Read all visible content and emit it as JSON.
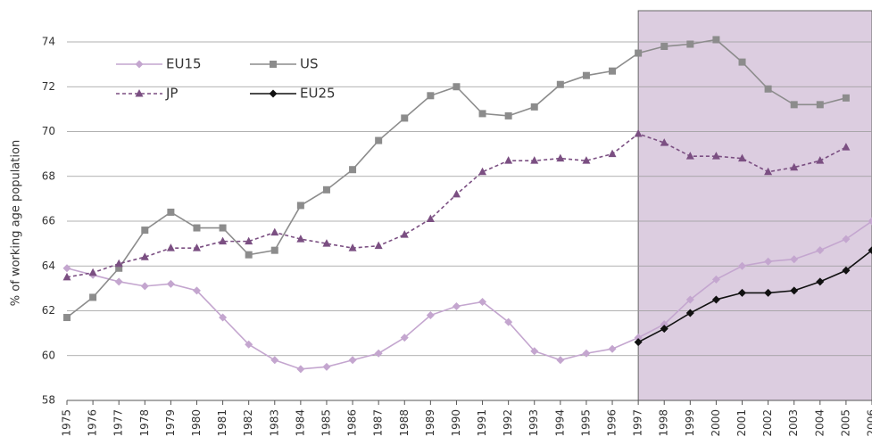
{
  "chart_data": {
    "type": "line",
    "y_label": "% of working age population",
    "x": [
      1975,
      1976,
      1977,
      1978,
      1979,
      1980,
      1981,
      1982,
      1983,
      1984,
      1985,
      1986,
      1987,
      1988,
      1989,
      1990,
      1991,
      1992,
      1993,
      1994,
      1995,
      1996,
      1997,
      1998,
      1999,
      2000,
      2001,
      2002,
      2003,
      2004,
      2005,
      2006
    ],
    "xlim": [
      1975,
      2006
    ],
    "xticks": [
      1975,
      1976,
      1977,
      1978,
      1979,
      1980,
      1981,
      1982,
      1983,
      1984,
      1985,
      1986,
      1987,
      1988,
      1989,
      1990,
      1991,
      1992,
      1993,
      1994,
      1995,
      1996,
      1997,
      1998,
      1999,
      2000,
      2001,
      2002,
      2003,
      2004,
      2005,
      2006
    ],
    "ylim": [
      58,
      74
    ],
    "yticks": [
      58,
      60,
      62,
      64,
      66,
      68,
      70,
      72,
      74
    ],
    "grid": true,
    "shaded_xlim": [
      1997,
      2006
    ],
    "shade_color": "#dccde0",
    "series": [
      {
        "name": "EU15",
        "color": "#c4a6cf",
        "marker": "diamond",
        "dashed": false,
        "values": [
          63.9,
          63.6,
          63.3,
          63.1,
          63.2,
          62.9,
          61.7,
          60.5,
          59.8,
          59.4,
          59.5,
          59.8,
          60.1,
          60.8,
          61.8,
          62.2,
          62.4,
          61.5,
          60.2,
          59.8,
          60.1,
          60.3,
          60.8,
          61.4,
          62.5,
          63.4,
          64.0,
          64.2,
          64.3,
          64.7,
          65.2,
          66.0
        ]
      },
      {
        "name": "US",
        "color": "#8c8c8c",
        "marker": "square",
        "dashed": false,
        "values": [
          61.7,
          62.6,
          63.9,
          65.6,
          66.4,
          65.7,
          65.7,
          64.5,
          64.7,
          66.7,
          67.4,
          68.3,
          69.6,
          70.6,
          71.6,
          72.0,
          70.8,
          70.7,
          71.1,
          72.1,
          72.5,
          72.7,
          73.5,
          73.8,
          73.9,
          74.1,
          73.1,
          71.9,
          71.2,
          71.2,
          71.5,
          null
        ]
      },
      {
        "name": "JP",
        "color": "#7b4f82",
        "marker": "triangle",
        "dashed": true,
        "values": [
          63.5,
          63.7,
          64.1,
          64.4,
          64.8,
          64.8,
          65.1,
          65.1,
          65.5,
          65.2,
          65.0,
          64.8,
          64.9,
          65.4,
          66.1,
          67.2,
          68.2,
          68.7,
          68.7,
          68.8,
          68.7,
          69.0,
          69.9,
          69.5,
          68.9,
          68.9,
          68.8,
          68.2,
          68.4,
          68.7,
          69.3,
          null
        ]
      },
      {
        "name": "EU25",
        "color": "#111111",
        "marker": "diamond",
        "dashed": false,
        "values": [
          null,
          null,
          null,
          null,
          null,
          null,
          null,
          null,
          null,
          null,
          null,
          null,
          null,
          null,
          null,
          null,
          null,
          null,
          null,
          null,
          null,
          null,
          60.6,
          61.2,
          61.9,
          62.5,
          62.8,
          62.8,
          62.9,
          63.3,
          63.8,
          64.7
        ]
      }
    ]
  }
}
